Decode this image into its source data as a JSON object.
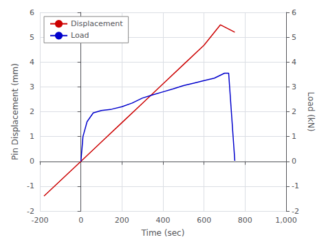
{
  "chart_data": {
    "type": "line",
    "xlabel": "Time (sec)",
    "ylabel": "Pin Displacement (mm)",
    "y2label": "Load (kN)",
    "xlim": [
      -200,
      1000
    ],
    "xticks": [
      -200,
      0,
      200,
      400,
      600,
      800,
      1000
    ],
    "ylim": [
      -2,
      6
    ],
    "yticks": [
      -2,
      -1,
      0,
      1,
      2,
      3,
      4,
      5,
      6
    ],
    "y2lim": [
      -2,
      6
    ],
    "y2ticks": [
      -2,
      -1,
      0,
      1,
      2,
      3,
      4,
      5,
      6
    ],
    "grid": true,
    "legend": "upper left",
    "series": [
      {
        "name": "Displacement",
        "color": "#cc0000",
        "x": [
          -180,
          0,
          100,
          200,
          300,
          400,
          500,
          600,
          680,
          750
        ],
        "values": [
          -1.4,
          0,
          0.78,
          1.56,
          2.34,
          3.12,
          3.9,
          4.68,
          5.5,
          5.2
        ]
      },
      {
        "name": "Load",
        "color": "#0000cc",
        "axis": "y2",
        "x": [
          0,
          10,
          30,
          60,
          100,
          150,
          200,
          250,
          300,
          350,
          400,
          450,
          500,
          550,
          600,
          650,
          700,
          720,
          750
        ],
        "values": [
          0.0,
          1.0,
          1.6,
          1.95,
          2.05,
          2.1,
          2.2,
          2.35,
          2.55,
          2.68,
          2.8,
          2.92,
          3.05,
          3.15,
          3.25,
          3.35,
          3.55,
          3.55,
          0.02
        ]
      }
    ]
  }
}
